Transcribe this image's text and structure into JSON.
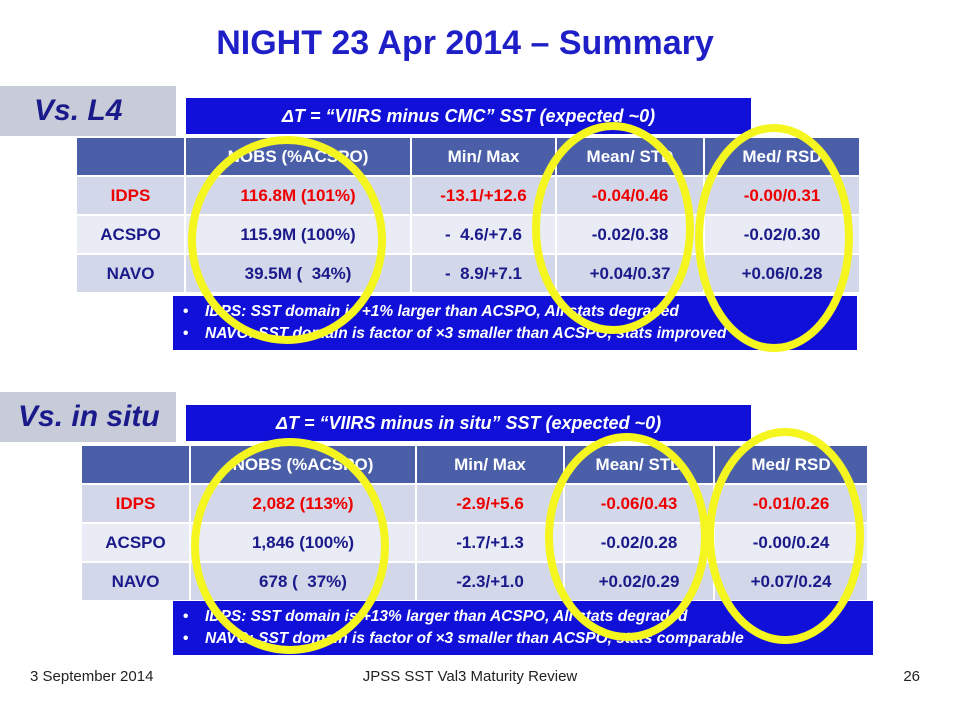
{
  "title": "NIGHT 23 Apr 2014 – Summary",
  "colors": {
    "title": "#1f1fc8",
    "bar": "#1010d8",
    "header_row": "#4a5fa8",
    "idps": "#ee0000",
    "ring": "#f5f520"
  },
  "sections": [
    {
      "label": "Vs. L4",
      "delta": "ΔT =  “VIIRS minus CMC” SST (expected ~0)",
      "headers": [
        "",
        "NOBS (%ACSPO)",
        "Min/ Max",
        "Mean/ STD",
        "Med/ RSD"
      ],
      "rows": [
        [
          "IDPS",
          "116.8M (101%)",
          "-13.1/+12.6",
          "-0.04/0.46",
          "-0.00/0.31"
        ],
        [
          "ACSPO",
          "115.9M (100%)",
          "-  4.6/+7.6",
          "-0.02/0.38",
          "-0.02/0.30"
        ],
        [
          "NAVO",
          "39.5M (  34%)",
          "-  8.9/+7.1",
          "+0.04/0.37",
          "+0.06/0.28"
        ]
      ],
      "notes": [
        "IDPS: SST domain is +1% larger than ACSPO, All stats degraded",
        "NAVO: SST domain is factor of ×3 smaller than ACSPO, stats improved"
      ]
    },
    {
      "label": "Vs. in situ",
      "delta": "ΔT =  “VIIRS minus in situ” SST (expected ~0)",
      "headers": [
        "",
        "NOBS (%ACSPO)",
        "Min/ Max",
        "Mean/ STD",
        "Med/ RSD"
      ],
      "rows": [
        [
          "IDPS",
          "2,082 (113%)",
          "-2.9/+5.6",
          "-0.06/0.43",
          "-0.01/0.26"
        ],
        [
          "ACSPO",
          "1,846 (100%)",
          "-1.7/+1.3",
          "-0.02/0.28",
          "-0.00/0.24"
        ],
        [
          "NAVO",
          "678 (  37%)",
          "-2.3/+1.0",
          "+0.02/0.29",
          "+0.07/0.24"
        ]
      ],
      "notes": [
        "IDPS: SST domain is +13% larger than ACSPO, All stats degraded",
        "NAVO: SST domain is factor of ×3 smaller than ACSPO, stats comparable"
      ]
    }
  ],
  "footer": {
    "date": "3 September 2014",
    "event": "JPSS SST Val3 Maturity Review",
    "page": "26"
  }
}
